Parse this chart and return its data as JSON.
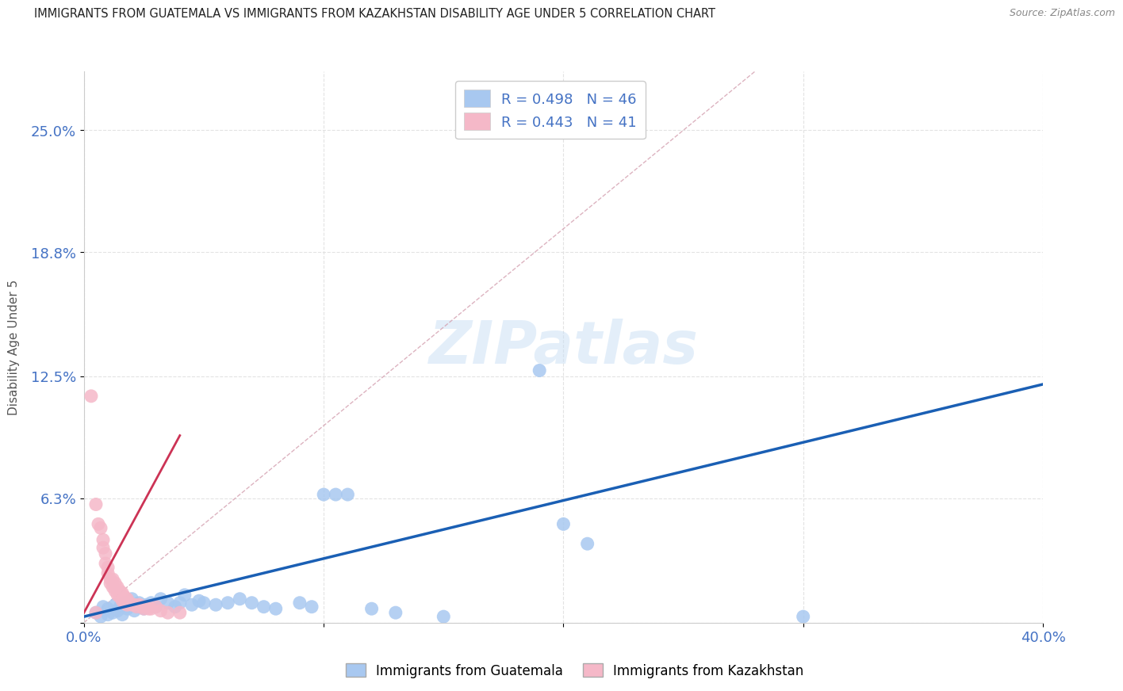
{
  "title": "IMMIGRANTS FROM GUATEMALA VS IMMIGRANTS FROM KAZAKHSTAN DISABILITY AGE UNDER 5 CORRELATION CHART",
  "source": "Source: ZipAtlas.com",
  "ylabel": "Disability Age Under 5",
  "watermark": "ZIPatlas",
  "xlim": [
    0.0,
    0.4
  ],
  "ylim": [
    0.0,
    0.28
  ],
  "xtick_positions": [
    0.0,
    0.1,
    0.2,
    0.3,
    0.4
  ],
  "xticklabels": [
    "0.0%",
    "",
    "",
    "",
    "40.0%"
  ],
  "ytick_positions": [
    0.0,
    0.063,
    0.125,
    0.188,
    0.25
  ],
  "ytick_labels": [
    "",
    "6.3%",
    "12.5%",
    "18.8%",
    "25.0%"
  ],
  "guatemala_color": "#a8c8f0",
  "kazakhstan_color": "#f5b8c8",
  "guatemala_line_color": "#1a5fb4",
  "kazakhstan_line_color": "#cc3355",
  "diag_line_color": "#d4a0b0",
  "R_guatemala": 0.498,
  "N_guatemala": 46,
  "R_kazakhstan": 0.443,
  "N_kazakhstan": 41,
  "guatemala_line_x": [
    0.0,
    0.4
  ],
  "guatemala_line_y": [
    0.003,
    0.121
  ],
  "kazakhstan_line_x": [
    0.0,
    0.04
  ],
  "kazakhstan_line_y": [
    0.005,
    0.095
  ],
  "diag_line_x": [
    0.0,
    0.28
  ],
  "diag_line_y": [
    0.0,
    0.28
  ],
  "guatemala_scatter": [
    [
      0.005,
      0.005
    ],
    [
      0.007,
      0.003
    ],
    [
      0.008,
      0.008
    ],
    [
      0.01,
      0.007
    ],
    [
      0.01,
      0.004
    ],
    [
      0.012,
      0.005
    ],
    [
      0.013,
      0.009
    ],
    [
      0.014,
      0.006
    ],
    [
      0.015,
      0.008
    ],
    [
      0.016,
      0.004
    ],
    [
      0.017,
      0.01
    ],
    [
      0.018,
      0.007
    ],
    [
      0.02,
      0.012
    ],
    [
      0.021,
      0.006
    ],
    [
      0.022,
      0.008
    ],
    [
      0.023,
      0.01
    ],
    [
      0.025,
      0.007
    ],
    [
      0.026,
      0.009
    ],
    [
      0.028,
      0.01
    ],
    [
      0.03,
      0.008
    ],
    [
      0.032,
      0.012
    ],
    [
      0.035,
      0.01
    ],
    [
      0.038,
      0.008
    ],
    [
      0.04,
      0.01
    ],
    [
      0.042,
      0.014
    ],
    [
      0.045,
      0.009
    ],
    [
      0.048,
      0.011
    ],
    [
      0.05,
      0.01
    ],
    [
      0.055,
      0.009
    ],
    [
      0.06,
      0.01
    ],
    [
      0.065,
      0.012
    ],
    [
      0.07,
      0.01
    ],
    [
      0.075,
      0.008
    ],
    [
      0.08,
      0.007
    ],
    [
      0.09,
      0.01
    ],
    [
      0.095,
      0.008
    ],
    [
      0.1,
      0.065
    ],
    [
      0.105,
      0.065
    ],
    [
      0.11,
      0.065
    ],
    [
      0.12,
      0.007
    ],
    [
      0.13,
      0.005
    ],
    [
      0.15,
      0.003
    ],
    [
      0.19,
      0.128
    ],
    [
      0.2,
      0.05
    ],
    [
      0.21,
      0.04
    ],
    [
      0.3,
      0.003
    ]
  ],
  "kazakhstan_scatter": [
    [
      0.003,
      0.115
    ],
    [
      0.005,
      0.06
    ],
    [
      0.006,
      0.05
    ],
    [
      0.007,
      0.048
    ],
    [
      0.008,
      0.042
    ],
    [
      0.008,
      0.038
    ],
    [
      0.009,
      0.035
    ],
    [
      0.009,
      0.03
    ],
    [
      0.01,
      0.028
    ],
    [
      0.01,
      0.025
    ],
    [
      0.011,
      0.022
    ],
    [
      0.011,
      0.02
    ],
    [
      0.012,
      0.022
    ],
    [
      0.012,
      0.018
    ],
    [
      0.013,
      0.02
    ],
    [
      0.013,
      0.016
    ],
    [
      0.014,
      0.018
    ],
    [
      0.014,
      0.014
    ],
    [
      0.015,
      0.016
    ],
    [
      0.015,
      0.013
    ],
    [
      0.016,
      0.015
    ],
    [
      0.016,
      0.011
    ],
    [
      0.017,
      0.013
    ],
    [
      0.017,
      0.01
    ],
    [
      0.018,
      0.012
    ],
    [
      0.018,
      0.009
    ],
    [
      0.019,
      0.01
    ],
    [
      0.02,
      0.009
    ],
    [
      0.021,
      0.009
    ],
    [
      0.022,
      0.008
    ],
    [
      0.023,
      0.009
    ],
    [
      0.024,
      0.008
    ],
    [
      0.025,
      0.007
    ],
    [
      0.026,
      0.008
    ],
    [
      0.027,
      0.007
    ],
    [
      0.028,
      0.007
    ],
    [
      0.03,
      0.008
    ],
    [
      0.032,
      0.006
    ],
    [
      0.035,
      0.005
    ],
    [
      0.04,
      0.005
    ],
    [
      0.005,
      0.005
    ]
  ],
  "background_color": "#ffffff",
  "grid_color": "#e0e0e0",
  "title_color": "#222222",
  "axis_label_color": "#4472c4",
  "tick_label_color": "#4472c4"
}
